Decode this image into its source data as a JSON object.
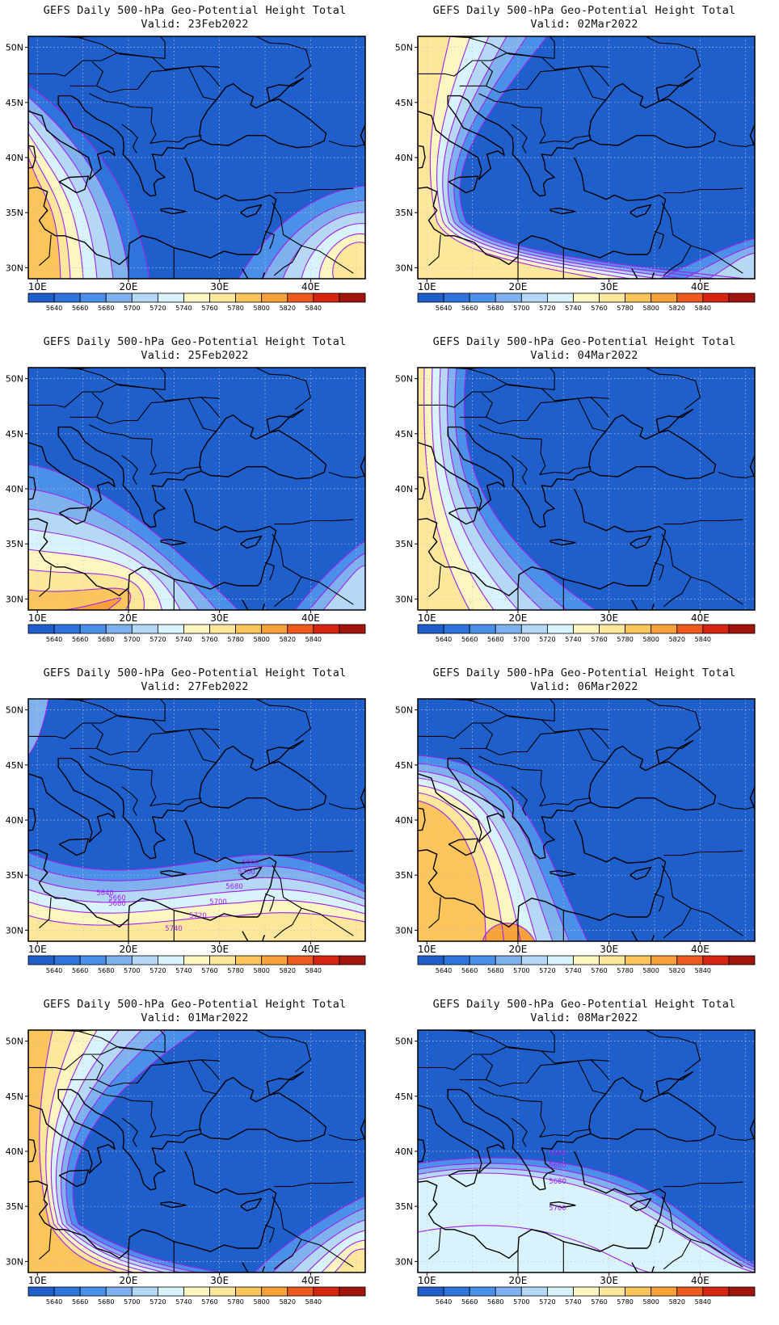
{
  "panel_title": "GEFS Daily 500-hPa Geo-Potential Height Total",
  "valid_prefix": "Valid: ",
  "lon_ticks": [
    "10E",
    "20E",
    "30E",
    "40E"
  ],
  "lat_ticks": [
    "50N",
    "45N",
    "40N",
    "35N",
    "30N"
  ],
  "colorbar": {
    "levels": [
      "5640",
      "5660",
      "5680",
      "5700",
      "5720",
      "5740",
      "5760",
      "5780",
      "5800",
      "5820",
      "5840"
    ],
    "colors": [
      "#1e5fcc",
      "#2f73dc",
      "#4a8fe8",
      "#7fb1ef",
      "#b4d8f5",
      "#d8f3fb",
      "#fdf6c0",
      "#fde79a",
      "#fbc55c",
      "#f7a13a",
      "#ee5a1e",
      "#d62612",
      "#a0150c"
    ]
  },
  "map_colors": {
    "background": "#1e5fcc",
    "contour": "#a020f0",
    "coast": "#000000",
    "grid": "#c8c8c8"
  },
  "panels": [
    {
      "date": "23Feb2022",
      "labels": []
    },
    {
      "date": "02Mar2022",
      "labels": []
    },
    {
      "date": "25Feb2022",
      "labels": []
    },
    {
      "date": "04Mar2022",
      "labels": []
    },
    {
      "date": "27Feb2022",
      "labels": [
        "5660",
        "5700",
        "5680",
        "5640",
        "5660",
        "5680",
        "5700",
        "5720",
        "5740"
      ]
    },
    {
      "date": "06Mar2022",
      "labels": []
    },
    {
      "date": "01Mar2022",
      "labels": []
    },
    {
      "date": "08Mar2022",
      "labels": [
        "5660",
        "5660",
        "5680",
        "5700"
      ]
    }
  ]
}
